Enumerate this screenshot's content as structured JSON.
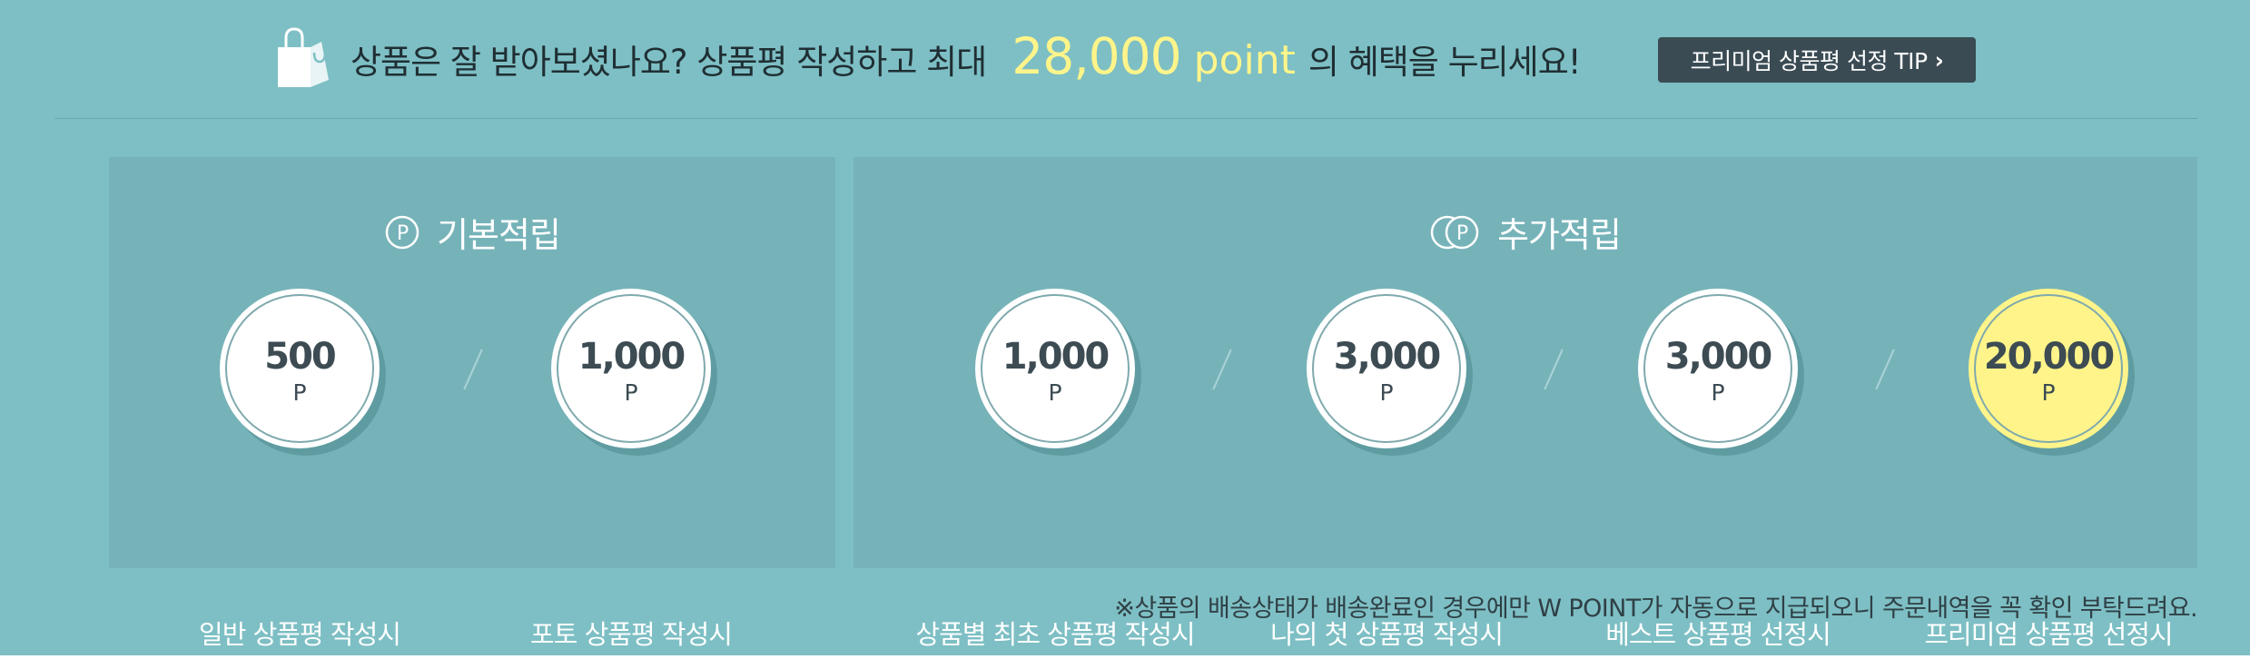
{
  "header": {
    "headline_prefix": "상품은 잘 받아보셨나요? 상품평 작성하고 최대",
    "headline_points": "28,000",
    "headline_points_unit": "point",
    "headline_suffix": "의 혜택을 누리세요!",
    "tip_button_label": "프리미엄 상품평 선정 TIP",
    "tip_button_chevron": "›"
  },
  "basic": {
    "title": "기본적립",
    "icon_letter": "P",
    "items": [
      {
        "amount": "500",
        "unit": "P",
        "label": "일반 상품평 작성시"
      },
      {
        "amount": "1,000",
        "unit": "P",
        "label": "포토 상품평 작성시"
      }
    ]
  },
  "extra": {
    "title": "추가적립",
    "icon_letter": "P",
    "items": [
      {
        "amount": "1,000",
        "unit": "P",
        "label": "상품별 최초 상품평 작성시"
      },
      {
        "amount": "3,000",
        "unit": "P",
        "label": "나의 첫 상품평 작성시"
      },
      {
        "amount": "3,000",
        "unit": "P",
        "label": "베스트 상품평 선정시"
      },
      {
        "amount": "20,000",
        "unit": "P",
        "label": "프리미엄 상품평 선정시"
      }
    ]
  },
  "notice": "※상품의 배송상태가 배송완료인 경우에만 W POINT가 자동으로 지급되오니 주문내역을 꼭 확인 부탁드려요.",
  "colors": {
    "background": "#7dbfc4",
    "panel": "#76b3b9",
    "highlight": "#fff48a",
    "button": "#3a4b54"
  }
}
